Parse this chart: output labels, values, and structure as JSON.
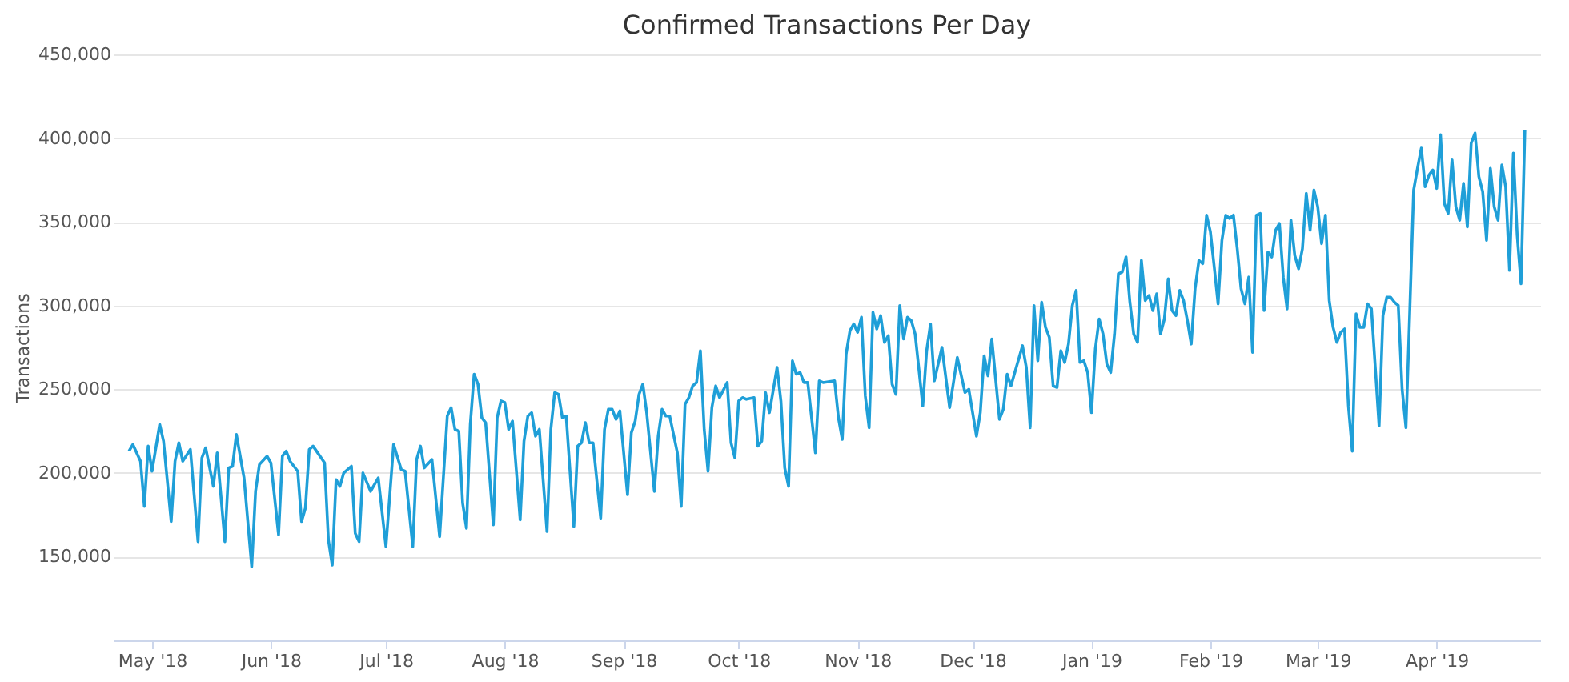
{
  "chart_data": {
    "type": "line",
    "title": "Confirmed Transactions Per Day",
    "ylabel": "Transactions",
    "xlim": [
      "2018-04-21",
      "2019-04-28"
    ],
    "ylim": [
      100000,
      450000
    ],
    "xticks": [
      {
        "value": "2018-05-01",
        "label": "May '18"
      },
      {
        "value": "2018-06-01",
        "label": "Jun '18"
      },
      {
        "value": "2018-07-01",
        "label": "Jul '18"
      },
      {
        "value": "2018-08-01",
        "label": "Aug '18"
      },
      {
        "value": "2018-09-01",
        "label": "Sep '18"
      },
      {
        "value": "2018-10-01",
        "label": "Oct '18"
      },
      {
        "value": "2018-11-01",
        "label": "Nov '18"
      },
      {
        "value": "2018-12-01",
        "label": "Dec '18"
      },
      {
        "value": "2019-01-01",
        "label": "Jan '19"
      },
      {
        "value": "2019-02-01",
        "label": "Feb '19"
      },
      {
        "value": "2019-03-01",
        "label": "Mar '19"
      },
      {
        "value": "2019-04-01",
        "label": "Apr '19"
      }
    ],
    "yticks": [
      {
        "value": 150000,
        "label": "150,000"
      },
      {
        "value": 200000,
        "label": "200,000"
      },
      {
        "value": 250000,
        "label": "250,000"
      },
      {
        "value": 300000,
        "label": "300,000"
      },
      {
        "value": 350000,
        "label": "350,000"
      },
      {
        "value": 400000,
        "label": "400,000"
      },
      {
        "value": 450000,
        "label": "450,000"
      }
    ],
    "grid": "y",
    "marker": "none",
    "line_style": "solid",
    "series": [
      {
        "color": "#1f9fd8",
        "x": [
          "2018-04-25",
          "2018-04-26",
          "2018-04-28",
          "2018-04-29",
          "2018-04-30",
          "2018-05-01",
          "2018-05-03",
          "2018-05-04",
          "2018-05-06",
          "2018-05-07",
          "2018-05-08",
          "2018-05-09",
          "2018-05-11",
          "2018-05-13",
          "2018-05-14",
          "2018-05-15",
          "2018-05-17",
          "2018-05-18",
          "2018-05-20",
          "2018-05-21",
          "2018-05-22",
          "2018-05-23",
          "2018-05-25",
          "2018-05-27",
          "2018-05-28",
          "2018-05-29",
          "2018-05-31",
          "2018-06-01",
          "2018-06-03",
          "2018-06-04",
          "2018-06-05",
          "2018-06-06",
          "2018-06-08",
          "2018-06-09",
          "2018-06-10",
          "2018-06-11",
          "2018-06-12",
          "2018-06-15",
          "2018-06-16",
          "2018-06-17",
          "2018-06-18",
          "2018-06-19",
          "2018-06-20",
          "2018-06-22",
          "2018-06-23",
          "2018-06-24",
          "2018-06-25",
          "2018-06-27",
          "2018-06-29",
          "2018-07-01",
          "2018-07-03",
          "2018-07-05",
          "2018-07-06",
          "2018-07-08",
          "2018-07-09",
          "2018-07-10",
          "2018-07-11",
          "2018-07-13",
          "2018-07-15",
          "2018-07-17",
          "2018-07-18",
          "2018-07-19",
          "2018-07-20",
          "2018-07-21",
          "2018-07-22",
          "2018-07-23",
          "2018-07-24",
          "2018-07-25",
          "2018-07-26",
          "2018-07-27",
          "2018-07-29",
          "2018-07-30",
          "2018-07-31",
          "2018-08-01",
          "2018-08-02",
          "2018-08-03",
          "2018-08-05",
          "2018-08-06",
          "2018-08-07",
          "2018-08-08",
          "2018-08-09",
          "2018-08-10",
          "2018-08-12",
          "2018-08-13",
          "2018-08-14",
          "2018-08-15",
          "2018-08-16",
          "2018-08-17",
          "2018-08-19",
          "2018-08-20",
          "2018-08-21",
          "2018-08-22",
          "2018-08-23",
          "2018-08-24",
          "2018-08-26",
          "2018-08-27",
          "2018-08-28",
          "2018-08-29",
          "2018-08-30",
          "2018-08-31",
          "2018-09-02",
          "2018-09-03",
          "2018-09-04",
          "2018-09-05",
          "2018-09-06",
          "2018-09-07",
          "2018-09-09",
          "2018-09-10",
          "2018-09-11",
          "2018-09-12",
          "2018-09-13",
          "2018-09-15",
          "2018-09-16",
          "2018-09-17",
          "2018-09-18",
          "2018-09-19",
          "2018-09-20",
          "2018-09-21",
          "2018-09-22",
          "2018-09-23",
          "2018-09-24",
          "2018-09-25",
          "2018-09-26",
          "2018-09-28",
          "2018-09-29",
          "2018-09-30",
          "2018-10-01",
          "2018-10-02",
          "2018-10-03",
          "2018-10-05",
          "2018-10-06",
          "2018-10-07",
          "2018-10-08",
          "2018-10-09",
          "2018-10-11",
          "2018-10-12",
          "2018-10-13",
          "2018-10-14",
          "2018-10-15",
          "2018-10-16",
          "2018-10-17",
          "2018-10-18",
          "2018-10-19",
          "2018-10-21",
          "2018-10-22",
          "2018-10-23",
          "2018-10-26",
          "2018-10-27",
          "2018-10-28",
          "2018-10-29",
          "2018-10-30",
          "2018-10-31",
          "2018-11-01",
          "2018-11-02",
          "2018-11-03",
          "2018-11-04",
          "2018-11-05",
          "2018-11-06",
          "2018-11-07",
          "2018-11-08",
          "2018-11-09",
          "2018-11-10",
          "2018-11-11",
          "2018-11-12",
          "2018-11-13",
          "2018-11-14",
          "2018-11-15",
          "2018-11-16",
          "2018-11-18",
          "2018-11-19",
          "2018-11-20",
          "2018-11-21",
          "2018-11-23",
          "2018-11-25",
          "2018-11-27",
          "2018-11-29",
          "2018-11-30",
          "2018-12-02",
          "2018-12-03",
          "2018-12-04",
          "2018-12-05",
          "2018-12-06",
          "2018-12-07",
          "2018-12-08",
          "2018-12-09",
          "2018-12-10",
          "2018-12-11",
          "2018-12-14",
          "2018-12-15",
          "2018-12-16",
          "2018-12-17",
          "2018-12-18",
          "2018-12-19",
          "2018-12-20",
          "2018-12-21",
          "2018-12-22",
          "2018-12-23",
          "2018-12-24",
          "2018-12-25",
          "2018-12-26",
          "2018-12-27",
          "2018-12-28",
          "2018-12-29",
          "2018-12-30",
          "2018-12-31",
          "2019-01-01",
          "2019-01-02",
          "2019-01-03",
          "2019-01-04",
          "2019-01-05",
          "2019-01-06",
          "2019-01-07",
          "2019-01-08",
          "2019-01-09",
          "2019-01-10",
          "2019-01-11",
          "2019-01-12",
          "2019-01-13",
          "2019-01-14",
          "2019-01-15",
          "2019-01-16",
          "2019-01-17",
          "2019-01-18",
          "2019-01-19",
          "2019-01-20",
          "2019-01-21",
          "2019-01-22",
          "2019-01-23",
          "2019-01-24",
          "2019-01-25",
          "2019-01-26",
          "2019-01-27",
          "2019-01-28",
          "2019-01-29",
          "2019-01-30",
          "2019-01-31",
          "2019-02-01",
          "2019-02-02",
          "2019-02-03",
          "2019-02-04",
          "2019-02-05",
          "2019-02-06",
          "2019-02-07",
          "2019-02-08",
          "2019-02-09",
          "2019-02-10",
          "2019-02-11",
          "2019-02-12",
          "2019-02-13",
          "2019-02-14",
          "2019-02-15",
          "2019-02-16",
          "2019-02-17",
          "2019-02-18",
          "2019-02-19",
          "2019-02-20",
          "2019-02-21",
          "2019-02-22",
          "2019-02-23",
          "2019-02-24",
          "2019-02-25",
          "2019-02-26",
          "2019-02-27",
          "2019-02-28",
          "2019-03-01",
          "2019-03-02",
          "2019-03-03",
          "2019-03-04",
          "2019-03-05",
          "2019-03-06",
          "2019-03-07",
          "2019-03-08",
          "2019-03-09",
          "2019-03-10",
          "2019-03-11",
          "2019-03-12",
          "2019-03-13",
          "2019-03-14",
          "2019-03-15",
          "2019-03-16",
          "2019-03-17",
          "2019-03-18",
          "2019-03-19",
          "2019-03-20",
          "2019-03-21",
          "2019-03-22",
          "2019-03-23",
          "2019-03-24",
          "2019-03-25",
          "2019-03-26",
          "2019-03-27",
          "2019-03-28",
          "2019-03-29",
          "2019-03-30",
          "2019-03-31",
          "2019-04-01",
          "2019-04-02",
          "2019-04-03",
          "2019-04-04",
          "2019-04-05",
          "2019-04-06",
          "2019-04-07",
          "2019-04-08",
          "2019-04-09",
          "2019-04-10",
          "2019-04-11",
          "2019-04-12",
          "2019-04-13",
          "2019-04-14",
          "2019-04-15",
          "2019-04-16",
          "2019-04-17",
          "2019-04-18",
          "2019-04-19",
          "2019-04-20",
          "2019-04-21",
          "2019-04-22",
          "2019-04-23",
          "2019-04-24"
        ],
        "values": [
          213000,
          217000,
          207000,
          180000,
          216000,
          201000,
          229000,
          219000,
          171000,
          207000,
          218000,
          207000,
          214000,
          159000,
          209000,
          215000,
          192000,
          212000,
          159000,
          203000,
          204000,
          223000,
          197000,
          144000,
          189000,
          205000,
          210000,
          206000,
          163000,
          210000,
          213000,
          207000,
          201000,
          171000,
          179000,
          214000,
          216000,
          206000,
          160000,
          145000,
          196000,
          192000,
          200000,
          204000,
          164000,
          159000,
          200000,
          189000,
          197000,
          156000,
          217000,
          202000,
          201000,
          156000,
          208000,
          216000,
          203000,
          208000,
          162000,
          234000,
          239000,
          226000,
          225000,
          182000,
          167000,
          229000,
          259000,
          253000,
          233000,
          230000,
          169000,
          233000,
          243000,
          242000,
          226000,
          231000,
          172000,
          219000,
          234000,
          236000,
          222000,
          226000,
          165000,
          226000,
          248000,
          247000,
          233000,
          234000,
          168000,
          216000,
          218000,
          230000,
          218000,
          218000,
          173000,
          226000,
          238000,
          238000,
          232000,
          237000,
          187000,
          224000,
          231000,
          247000,
          253000,
          236000,
          189000,
          222000,
          238000,
          234000,
          234000,
          212000,
          180000,
          241000,
          245000,
          252000,
          254000,
          273000,
          226000,
          201000,
          239000,
          252000,
          245000,
          254000,
          218000,
          209000,
          243000,
          245000,
          244000,
          245000,
          216000,
          219000,
          248000,
          236000,
          263000,
          243000,
          203000,
          192000,
          267000,
          259000,
          260000,
          254000,
          254000,
          212000,
          255000,
          254000,
          255000,
          233000,
          220000,
          271000,
          285000,
          289000,
          284000,
          293000,
          246000,
          227000,
          296000,
          286000,
          294000,
          278000,
          282000,
          253000,
          247000,
          300000,
          280000,
          293000,
          291000,
          283000,
          240000,
          273000,
          289000,
          255000,
          275000,
          239000,
          269000,
          248000,
          250000,
          222000,
          236000,
          270000,
          258000,
          280000,
          256000,
          232000,
          238000,
          259000,
          252000,
          276000,
          263000,
          227000,
          300000,
          267000,
          302000,
          287000,
          281000,
          252000,
          251000,
          273000,
          266000,
          277000,
          300000,
          309000,
          266000,
          267000,
          260000,
          236000,
          274000,
          292000,
          283000,
          265000,
          260000,
          283000,
          319000,
          320000,
          329000,
          302000,
          283000,
          278000,
          327000,
          303000,
          306000,
          297000,
          307000,
          283000,
          292000,
          316000,
          297000,
          294000,
          309000,
          303000,
          291000,
          277000,
          310000,
          327000,
          325000,
          354000,
          344000,
          323000,
          301000,
          339000,
          354000,
          352000,
          354000,
          334000,
          310000,
          301000,
          317000,
          272000,
          354000,
          355000,
          297000,
          332000,
          329000,
          345000,
          349000,
          317000,
          298000,
          351000,
          330000,
          322000,
          334000,
          367000,
          345000,
          369000,
          359000,
          337000,
          354000,
          303000,
          287000,
          278000,
          284000,
          286000,
          240000,
          213000,
          295000,
          287000,
          287000,
          301000,
          298000,
          263000,
          228000,
          294000,
          305000,
          305000,
          302000,
          300000,
          250000,
          227000,
          297000,
          369000,
          382000,
          394000,
          371000,
          378000,
          381000,
          370000,
          402000,
          361000,
          355000,
          387000,
          359000,
          351000,
          373000,
          347000,
          397000,
          403000,
          377000,
          368000,
          339000,
          382000,
          359000,
          351000,
          384000,
          371000,
          321000,
          391000,
          342000,
          313000,
          405000
        ]
      }
    ]
  }
}
